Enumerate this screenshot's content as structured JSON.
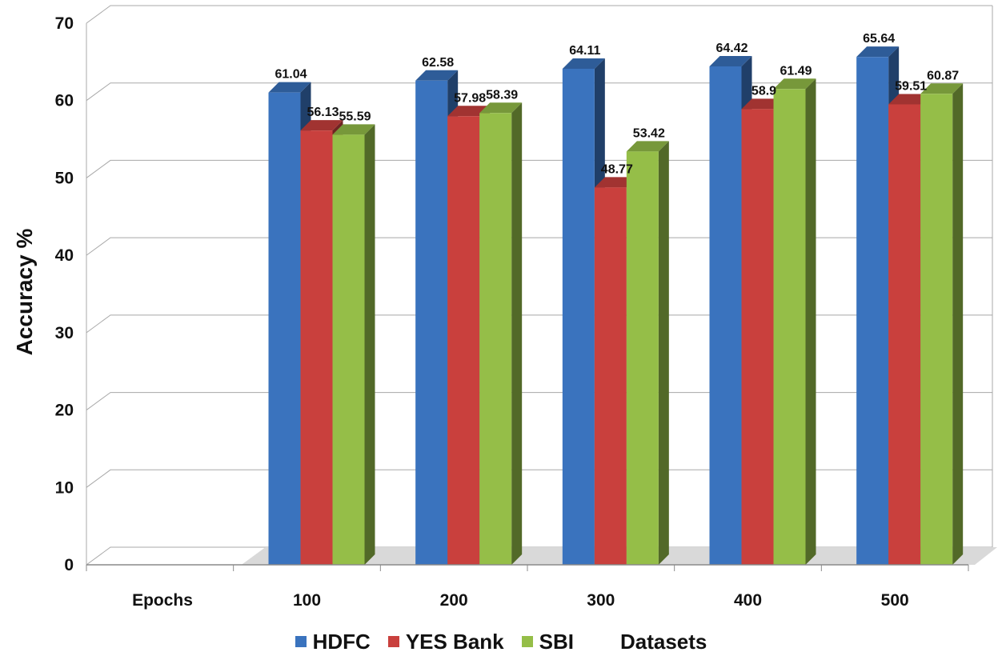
{
  "chart_data": {
    "type": "bar",
    "title": "",
    "ylabel": "Accuracy %",
    "xlabel": "Datasets",
    "category_axis_title": "Epochs",
    "ylim": [
      0,
      70
    ],
    "yticks": [
      0,
      10,
      20,
      30,
      40,
      50,
      60,
      70
    ],
    "grid": true,
    "style": "3d-clustered-column",
    "legend_position": "bottom",
    "categories": [
      "100",
      "200",
      "300",
      "400",
      "500"
    ],
    "series": [
      {
        "name": "HDFC",
        "color": "#3A73BE",
        "values": [
          61.04,
          62.58,
          64.11,
          64.42,
          65.64
        ]
      },
      {
        "name": "YES Bank",
        "color": "#C9403D",
        "values": [
          56.13,
          57.98,
          48.77,
          58.9,
          59.51
        ]
      },
      {
        "name": "SBI",
        "color": "#95BE48",
        "values": [
          55.59,
          58.39,
          53.42,
          61.49,
          60.87
        ]
      }
    ],
    "value_labels": [
      [
        "61.04",
        "62.58",
        "64.11",
        "64.42",
        "65.64"
      ],
      [
        "56.13",
        "57.98",
        "48.77",
        "58.9",
        "59.51"
      ],
      [
        "55.59",
        "58.39",
        "53.42",
        "61.49",
        "60.87"
      ]
    ]
  },
  "legend": {
    "items": [
      "HDFC",
      "YES Bank",
      "SBI"
    ],
    "title": "Datasets"
  }
}
